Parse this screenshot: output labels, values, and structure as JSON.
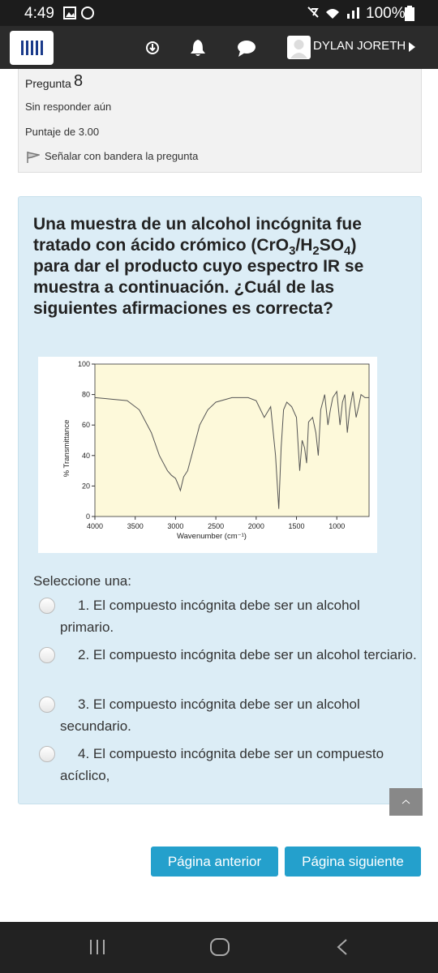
{
  "status_bar": {
    "time": "4:49",
    "battery": "100%"
  },
  "nav": {
    "user": "DYLAN JORETH"
  },
  "info": {
    "label": "Pregunta",
    "number": "8",
    "state": "Sin responder aún",
    "score": "Puntaje de 3.00",
    "flag": "Señalar con bandera la pregunta"
  },
  "question": [
    "Una muestra de un alcohol incógnita fue tratado con ácido crómico (CrO",
    "3",
    "/H",
    "2",
    "SO",
    "4",
    ") para dar el producto cuyo espectro IR se muestra a continuación.  ¿Cuál de las siguientes afirmaciones es correcta?"
  ],
  "spectrum": {
    "type": "line",
    "x_label": "Wavenumber (cm⁻¹)",
    "y_label": "% Transmittance",
    "color": "#555555",
    "x": [
      4000,
      3800,
      3600,
      3450,
      3300,
      3200,
      3100,
      3050,
      3000,
      2960,
      2940,
      2900,
      2850,
      2800,
      2700,
      2600,
      2500,
      2300,
      2100,
      2000,
      1900,
      1820,
      1760,
      1720,
      1690,
      1660,
      1620,
      1560,
      1500,
      1460,
      1430,
      1400,
      1375,
      1350,
      1300,
      1260,
      1230,
      1200,
      1150,
      1110,
      1080,
      1050,
      1000,
      960,
      930,
      900,
      870,
      840,
      800,
      760,
      730,
      700,
      650,
      600
    ],
    "values": [
      78,
      77,
      76,
      70,
      55,
      40,
      30,
      27,
      25,
      20,
      17,
      26,
      30,
      40,
      60,
      70,
      75,
      78,
      78,
      76,
      65,
      72,
      40,
      5,
      45,
      70,
      75,
      72,
      65,
      30,
      50,
      45,
      35,
      62,
      65,
      55,
      40,
      70,
      80,
      60,
      70,
      78,
      82,
      60,
      75,
      80,
      55,
      70,
      82,
      65,
      72,
      80,
      78,
      78
    ],
    "xlim": [
      4000,
      600
    ],
    "ylim": [
      0,
      100
    ],
    "xticks": [
      4000,
      3500,
      3000,
      2500,
      2000,
      1500,
      1000
    ],
    "yticks": [
      0,
      20,
      40,
      60,
      80,
      100
    ]
  },
  "prompt": "Seleccione una:",
  "options": [
    "1. El compuesto incógnita debe ser un alcohol primario.",
    "2. El compuesto incógnita debe ser un alcohol terciario.",
    "3. El compuesto incógnita debe ser un alcohol secundario.",
    "4. El compuesto incógnita debe ser un compuesto acíclico,"
  ],
  "buttons": {
    "prev": "Página anterior",
    "next": "Página siguiente"
  }
}
